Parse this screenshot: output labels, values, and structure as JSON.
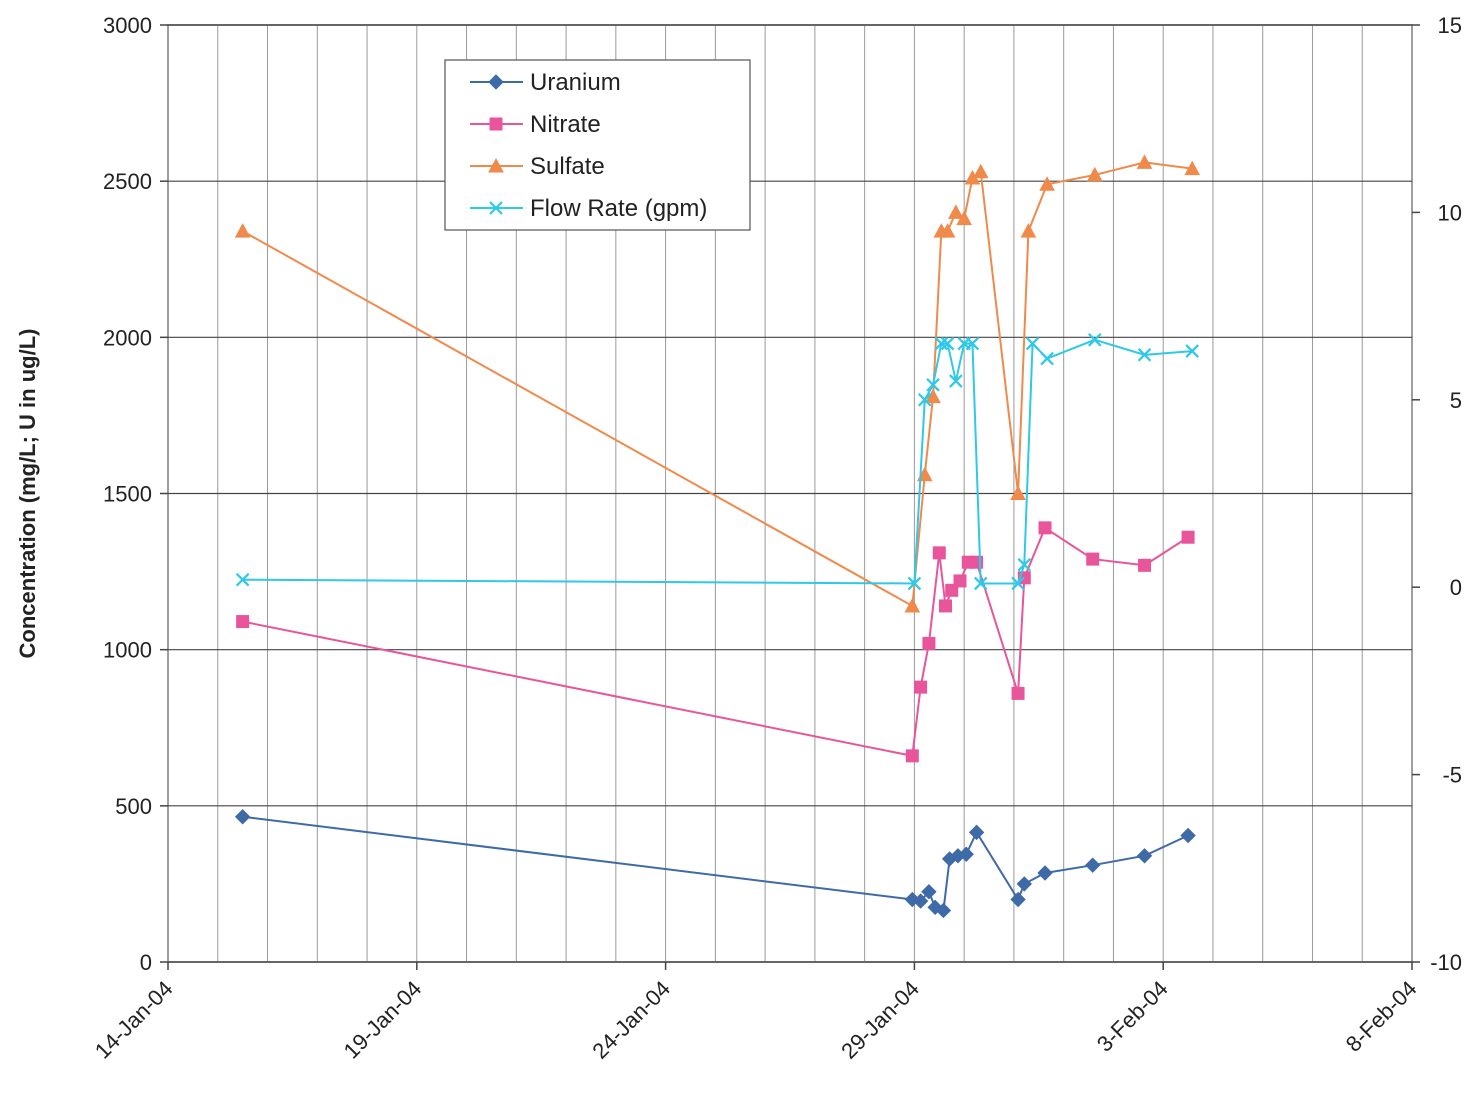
{
  "chart_data": {
    "type": "line",
    "title": "",
    "xlabel": "",
    "ylabel": "Concentration (mg/L; U in ug/L)",
    "y2label": "",
    "xlim": [
      "2004-01-14",
      "2004-02-08"
    ],
    "ylim": [
      0,
      3000
    ],
    "y2lim": [
      -10,
      15
    ],
    "x_tick_labels": [
      "14-Jan-04",
      "19-Jan-04",
      "24-Jan-04",
      "29-Jan-04",
      "3-Feb-04",
      "8-Feb-04"
    ],
    "x_ticks": [
      "2004-01-14",
      "2004-01-19",
      "2004-01-24",
      "2004-01-29",
      "2004-02-03",
      "2004-02-08"
    ],
    "y_ticks": [
      0,
      500,
      1000,
      1500,
      2000,
      2500,
      3000
    ],
    "y2_ticks": [
      -10,
      -5,
      0,
      5,
      10,
      15
    ],
    "grid": true,
    "legend_position": "top-center",
    "series": [
      {
        "name": "Uranium",
        "axis": "left",
        "color": "#3f6aa8",
        "marker": "diamond",
        "x": [
          "2004-01-15 12:00",
          "2004-01-28 23:00",
          "2004-01-29 03:00",
          "2004-01-29 07:00",
          "2004-01-29 10:00",
          "2004-01-29 14:00",
          "2004-01-29 17:00",
          "2004-01-29 21:00",
          "2004-01-30 01:00",
          "2004-01-30 06:00",
          "2004-01-31 02:00",
          "2004-01-31 05:00",
          "2004-01-31 15:00",
          "2004-02-01 14:00",
          "2004-02-02 15:00",
          "2004-02-03 12:00"
        ],
        "y": [
          465,
          200,
          195,
          225,
          175,
          165,
          330,
          340,
          345,
          415,
          200,
          250,
          285,
          310,
          340,
          405
        ]
      },
      {
        "name": "Nitrate",
        "axis": "left",
        "color": "#e8559a",
        "marker": "square",
        "x": [
          "2004-01-15 12:00",
          "2004-01-28 23:00",
          "2004-01-29 03:00",
          "2004-01-29 07:00",
          "2004-01-29 12:00",
          "2004-01-29 15:00",
          "2004-01-29 18:00",
          "2004-01-29 22:00",
          "2004-01-30 02:00",
          "2004-01-30 06:00",
          "2004-01-31 02:00",
          "2004-01-31 05:00",
          "2004-01-31 15:00",
          "2004-02-01 14:00",
          "2004-02-02 15:00",
          "2004-02-03 12:00"
        ],
        "y": [
          1090,
          660,
          880,
          1020,
          1310,
          1140,
          1190,
          1220,
          1280,
          1280,
          860,
          1230,
          1390,
          1290,
          1270,
          1360
        ]
      },
      {
        "name": "Sulfate",
        "axis": "left",
        "color": "#f08a4b",
        "marker": "triangle",
        "x": [
          "2004-01-15 12:00",
          "2004-01-28 23:00",
          "2004-01-29 05:00",
          "2004-01-29 09:00",
          "2004-01-29 13:00",
          "2004-01-29 16:00",
          "2004-01-29 20:00",
          "2004-01-30 00:00",
          "2004-01-30 04:00",
          "2004-01-30 08:00",
          "2004-01-31 02:00",
          "2004-01-31 07:00",
          "2004-01-31 16:00",
          "2004-02-01 15:00",
          "2004-02-02 15:00",
          "2004-02-03 14:00"
        ],
        "y": [
          2340,
          1140,
          1560,
          1810,
          2340,
          2340,
          2400,
          2380,
          2510,
          2530,
          1500,
          2340,
          2490,
          2520,
          2560,
          2540
        ]
      },
      {
        "name": "Flow Rate (gpm)",
        "axis": "right",
        "color": "#2ec8e8",
        "marker": "x",
        "x": [
          "2004-01-15 12:00",
          "2004-01-29 00:00",
          "2004-01-29 05:00",
          "2004-01-29 09:00",
          "2004-01-29 13:00",
          "2004-01-29 16:00",
          "2004-01-29 20:00",
          "2004-01-30 00:00",
          "2004-01-30 04:00",
          "2004-01-30 08:00",
          "2004-01-31 02:00",
          "2004-01-31 05:00",
          "2004-01-31 09:00",
          "2004-01-31 16:00",
          "2004-02-01 15:00",
          "2004-02-02 15:00",
          "2004-02-03 14:00"
        ],
        "y": [
          0.2,
          0.1,
          5.0,
          5.4,
          6.5,
          6.5,
          5.5,
          6.5,
          6.5,
          0.1,
          0.1,
          0.6,
          6.5,
          6.1,
          6.6,
          6.2,
          6.3
        ]
      }
    ]
  }
}
